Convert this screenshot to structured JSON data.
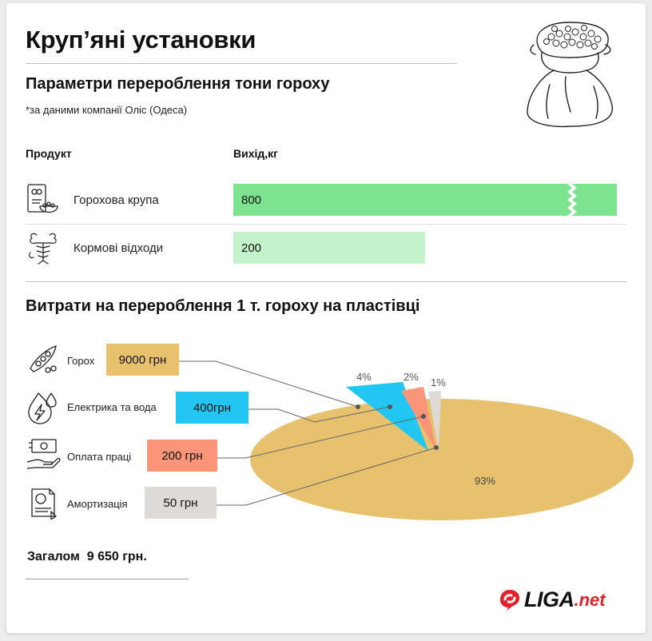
{
  "header": {
    "title": "Круп’яні установки",
    "subtitle": "Параметри перероблення тони гороху",
    "note": "*за даними компанії Оліс (Одеса)"
  },
  "output_table": {
    "col_product": "Продукт",
    "col_output": "Вихід,кг",
    "rows": [
      {
        "icon": "cereal-bowl-icon",
        "label": "Горохова крупа",
        "value": "800"
      },
      {
        "icon": "fish-bone-icon",
        "label": "Кормові відходи",
        "value": "200"
      }
    ]
  },
  "costs": {
    "title": "Витрати на перероблення 1 т. гороху на пластівці",
    "items": [
      {
        "icon": "pea-pod-icon",
        "label": "Горох",
        "value": "9000 грн",
        "color": "#e8c16f"
      },
      {
        "icon": "electric-water-icon",
        "label": "Електрика та вода",
        "value": "400грн",
        "color": "#22c6f2"
      },
      {
        "icon": "salary-icon",
        "label": "Оплата праці",
        "value": "200 грн",
        "color": "#fa9579"
      },
      {
        "icon": "document-icon",
        "label": "Амортизація",
        "value": "50 грн",
        "color": "#dedad8"
      }
    ],
    "total": "Загалом  9 650 грн."
  },
  "chart_data": [
    {
      "type": "bar",
      "title": "Параметри перероблення тони гороху",
      "xlabel": "Вихід,кг",
      "categories": [
        "Горохова крупа",
        "Кормові відходи"
      ],
      "values": [
        800,
        200
      ],
      "axis_break": true,
      "colors": [
        "#7de38e",
        "#c4f3cb"
      ]
    },
    {
      "type": "pie",
      "title": "Витрати на перероблення 1 т. гороху на пластівці",
      "categories": [
        "Горох",
        "Електрика та вода",
        "Оплата праці",
        "Амортизація"
      ],
      "values": [
        9000,
        400,
        200,
        50
      ],
      "labels": [
        "93%",
        "4%",
        "2%",
        "1%"
      ],
      "colors": [
        "#e8c16f",
        "#22c6f2",
        "#fa9579",
        "#dedad8"
      ]
    }
  ],
  "brand": {
    "name": "LIGA",
    "suffix": ".net"
  }
}
